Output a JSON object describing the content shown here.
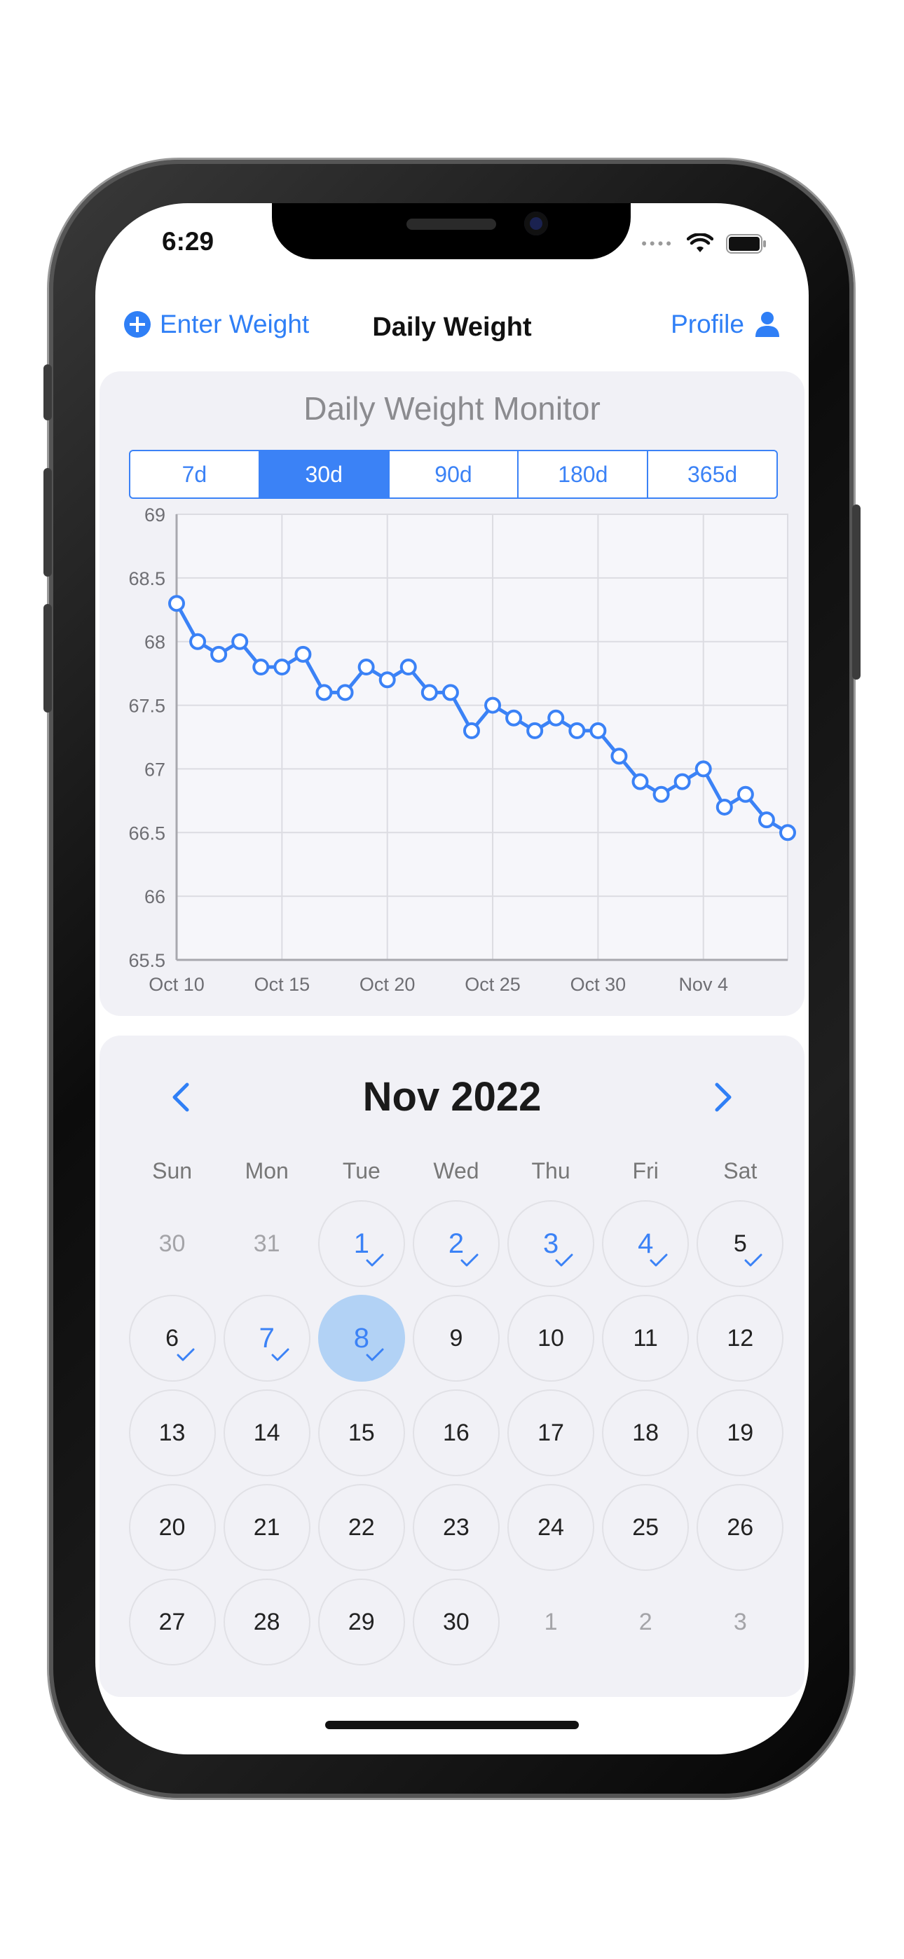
{
  "status_bar": {
    "time": "6:29"
  },
  "nav": {
    "enter_weight": "Enter Weight",
    "title": "Daily Weight",
    "profile": "Profile"
  },
  "chart_section": {
    "title": "Daily Weight Monitor",
    "ranges": [
      "7d",
      "30d",
      "90d",
      "180d",
      "365d"
    ],
    "active_range": "30d"
  },
  "chart_data": {
    "type": "line",
    "x_tick_labels": [
      "Oct 10",
      "Oct 15",
      "Oct 20",
      "Oct 25",
      "Oct 30",
      "Nov 4"
    ],
    "y_tick_labels": [
      "65.5",
      "66",
      "66.5",
      "67",
      "67.5",
      "68",
      "68.5",
      "69"
    ],
    "ylim": [
      65.5,
      69
    ],
    "xlim": [
      "Oct 10",
      "Nov 8"
    ],
    "grid": true,
    "series_color": "#3b82f6",
    "points": [
      {
        "x": "Oct 10",
        "y": 68.3
      },
      {
        "x": "Oct 11",
        "y": 68.0
      },
      {
        "x": "Oct 12",
        "y": 67.9
      },
      {
        "x": "Oct 13",
        "y": 68.0
      },
      {
        "x": "Oct 14",
        "y": 67.8
      },
      {
        "x": "Oct 15",
        "y": 67.8
      },
      {
        "x": "Oct 16",
        "y": 67.9
      },
      {
        "x": "Oct 17",
        "y": 67.6
      },
      {
        "x": "Oct 18",
        "y": 67.6
      },
      {
        "x": "Oct 19",
        "y": 67.8
      },
      {
        "x": "Oct 20",
        "y": 67.7
      },
      {
        "x": "Oct 21",
        "y": 67.8
      },
      {
        "x": "Oct 22",
        "y": 67.6
      },
      {
        "x": "Oct 23",
        "y": 67.6
      },
      {
        "x": "Oct 24",
        "y": 67.3
      },
      {
        "x": "Oct 25",
        "y": 67.5
      },
      {
        "x": "Oct 26",
        "y": 67.4
      },
      {
        "x": "Oct 27",
        "y": 67.3
      },
      {
        "x": "Oct 28",
        "y": 67.4
      },
      {
        "x": "Oct 29",
        "y": 67.3
      },
      {
        "x": "Oct 30",
        "y": 67.3
      },
      {
        "x": "Oct 31",
        "y": 67.1
      },
      {
        "x": "Nov 1",
        "y": 66.9
      },
      {
        "x": "Nov 2",
        "y": 66.8
      },
      {
        "x": "Nov 3",
        "y": 66.9
      },
      {
        "x": "Nov 4",
        "y": 67.0
      },
      {
        "x": "Nov 5",
        "y": 66.7
      },
      {
        "x": "Nov 6",
        "y": 66.8
      },
      {
        "x": "Nov 7",
        "y": 66.6
      },
      {
        "x": "Nov 8",
        "y": 66.5
      }
    ]
  },
  "calendar": {
    "title": "Nov 2022",
    "weekdays": [
      "Sun",
      "Mon",
      "Tue",
      "Wed",
      "Thu",
      "Fri",
      "Sat"
    ],
    "days": [
      {
        "label": "30",
        "out": true
      },
      {
        "label": "31",
        "out": true
      },
      {
        "label": "1",
        "logged": true
      },
      {
        "label": "2",
        "logged": true
      },
      {
        "label": "3",
        "logged": true
      },
      {
        "label": "4",
        "logged": true
      },
      {
        "label": "5",
        "checked": true
      },
      {
        "label": "6",
        "checked": true
      },
      {
        "label": "7",
        "logged": true
      },
      {
        "label": "8",
        "logged": true,
        "selected": true
      },
      {
        "label": "9"
      },
      {
        "label": "10"
      },
      {
        "label": "11"
      },
      {
        "label": "12"
      },
      {
        "label": "13"
      },
      {
        "label": "14"
      },
      {
        "label": "15"
      },
      {
        "label": "16"
      },
      {
        "label": "17"
      },
      {
        "label": "18"
      },
      {
        "label": "19"
      },
      {
        "label": "20"
      },
      {
        "label": "21"
      },
      {
        "label": "22"
      },
      {
        "label": "23"
      },
      {
        "label": "24"
      },
      {
        "label": "25"
      },
      {
        "label": "26"
      },
      {
        "label": "27"
      },
      {
        "label": "28"
      },
      {
        "label": "29"
      },
      {
        "label": "30"
      },
      {
        "label": "1",
        "out": true
      },
      {
        "label": "2",
        "out": true
      },
      {
        "label": "3",
        "out": true
      }
    ]
  },
  "colors": {
    "accent": "#2f7ff6",
    "card_bg": "#f1f1f6",
    "selected_day": "#b2d2f5"
  }
}
